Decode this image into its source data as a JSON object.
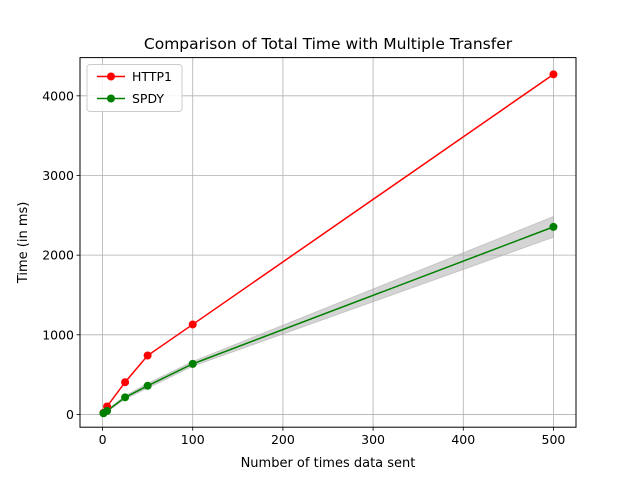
{
  "chart_data": {
    "type": "line",
    "title": "Comparison of Total Time with Multiple Transfer",
    "xlabel": "Number of times data sent",
    "ylabel": "Time (in ms)",
    "xlim": [
      -25,
      525
    ],
    "ylim": [
      -160,
      4480
    ],
    "xticks": [
      0,
      100,
      200,
      300,
      400,
      500
    ],
    "yticks": [
      0,
      1000,
      2000,
      3000,
      4000
    ],
    "grid": true,
    "legend_position": "top-left",
    "series": [
      {
        "name": "HTTP1",
        "color": "#ff0000",
        "x": [
          1,
          5,
          25,
          50,
          100,
          500
        ],
        "y": [
          20,
          100,
          405,
          740,
          1130,
          4270
        ]
      },
      {
        "name": "SPDY",
        "color": "#008000",
        "x": [
          1,
          5,
          25,
          50,
          100,
          500
        ],
        "y": [
          15,
          45,
          215,
          360,
          635,
          2355
        ],
        "band": {
          "color": "#a9a9a9",
          "lower": [
            10,
            35,
            195,
            330,
            605,
            2225
          ],
          "upper": [
            20,
            55,
            235,
            390,
            665,
            2485
          ]
        }
      }
    ]
  }
}
